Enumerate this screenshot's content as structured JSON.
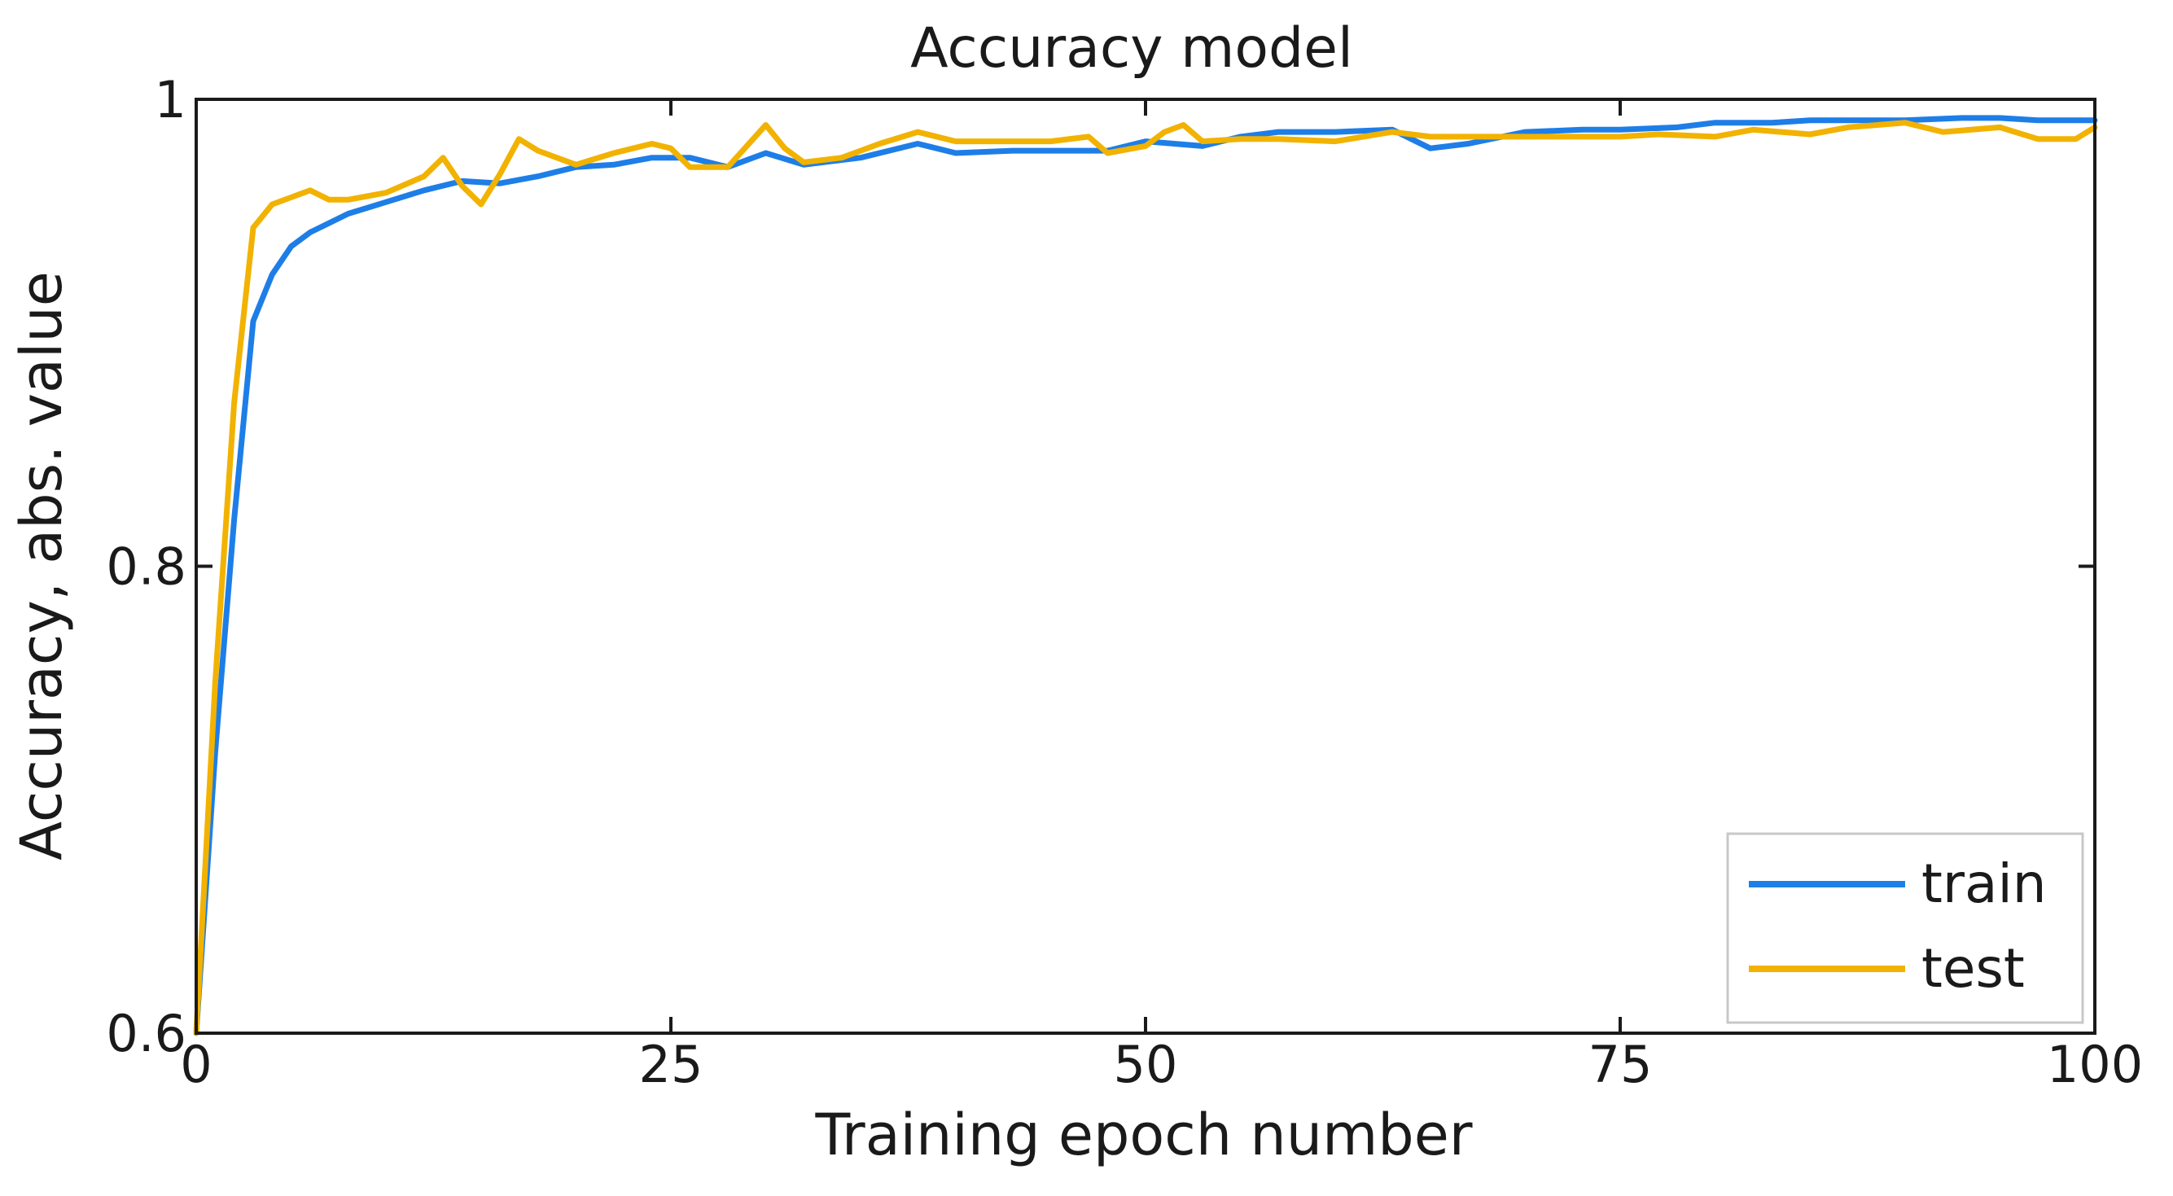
{
  "chart_data": {
    "type": "line",
    "title": "Accuracy model",
    "xlabel": "Training epoch number",
    "ylabel": "Accuracy, abs. value",
    "xlim": [
      0,
      100
    ],
    "ylim": [
      0.6,
      1.0
    ],
    "xticks": [
      0,
      25,
      50,
      75,
      100
    ],
    "xtick_labels": [
      "0",
      "25",
      "50",
      "75",
      "100"
    ],
    "yticks": [
      0.6,
      0.8,
      1.0
    ],
    "ytick_labels": [
      "0.6",
      "0.8",
      "1"
    ],
    "grid": false,
    "legend_position": "bottom-right",
    "series": [
      {
        "name": "train",
        "color": "#1e7ee8",
        "x": [
          0,
          1,
          2,
          3,
          4,
          5,
          6,
          7,
          8,
          10,
          12,
          14,
          16,
          18,
          20,
          22,
          24,
          26,
          28,
          30,
          32,
          35,
          38,
          40,
          43,
          45,
          48,
          50,
          53,
          55,
          57,
          60,
          63,
          65,
          67,
          70,
          73,
          75,
          78,
          80,
          83,
          85,
          88,
          90,
          93,
          95,
          97,
          100
        ],
        "y": [
          0.6,
          0.72,
          0.82,
          0.905,
          0.925,
          0.937,
          0.943,
          0.947,
          0.951,
          0.956,
          0.961,
          0.965,
          0.964,
          0.967,
          0.971,
          0.972,
          0.975,
          0.975,
          0.971,
          0.977,
          0.972,
          0.975,
          0.981,
          0.977,
          0.978,
          0.978,
          0.978,
          0.982,
          0.98,
          0.984,
          0.986,
          0.986,
          0.987,
          0.979,
          0.981,
          0.986,
          0.987,
          0.987,
          0.988,
          0.99,
          0.99,
          0.991,
          0.991,
          0.991,
          0.992,
          0.992,
          0.991,
          0.991
        ]
      },
      {
        "name": "test",
        "color": "#f2b200",
        "x": [
          0,
          1,
          2,
          3,
          4,
          5,
          6,
          7,
          8,
          10,
          12,
          13,
          14,
          15,
          16,
          17,
          18,
          20,
          22,
          24,
          25,
          26,
          28,
          30,
          31,
          32,
          34,
          36,
          38,
          40,
          43,
          45,
          47,
          48,
          50,
          51,
          52,
          53,
          55,
          57,
          60,
          63,
          65,
          67,
          70,
          72,
          75,
          77,
          80,
          82,
          85,
          87,
          90,
          92,
          95,
          97,
          99,
          100
        ],
        "y": [
          0.6,
          0.75,
          0.87,
          0.945,
          0.955,
          0.958,
          0.961,
          0.957,
          0.957,
          0.96,
          0.967,
          0.975,
          0.963,
          0.955,
          0.968,
          0.983,
          0.978,
          0.972,
          0.977,
          0.981,
          0.979,
          0.971,
          0.971,
          0.989,
          0.979,
          0.973,
          0.975,
          0.981,
          0.986,
          0.982,
          0.982,
          0.982,
          0.984,
          0.977,
          0.98,
          0.986,
          0.989,
          0.982,
          0.983,
          0.983,
          0.982,
          0.986,
          0.984,
          0.984,
          0.984,
          0.984,
          0.984,
          0.985,
          0.984,
          0.987,
          0.985,
          0.988,
          0.99,
          0.986,
          0.988,
          0.983,
          0.983,
          0.988
        ]
      }
    ]
  }
}
